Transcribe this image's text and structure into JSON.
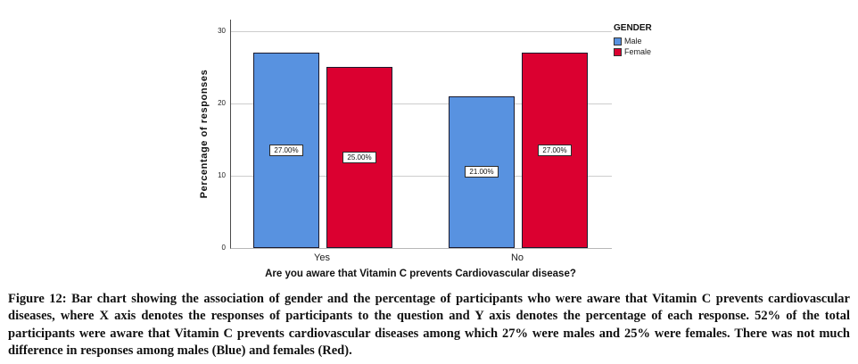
{
  "figure": {
    "caption": "Figure 12: Bar chart showing the association of gender and the percentage of participants who were aware that Vitamin C prevents cardiovascular diseases, where X axis denotes the responses of participants to the question and Y axis denotes the percentage of each response. 52% of the total participants were aware that Vitamin C prevents cardiovascular diseases among which 27% were males and 25% were females. There was not much difference in responses among males (Blue) and females (Red)."
  },
  "chart_data": {
    "type": "bar",
    "categories": [
      "Yes",
      "No"
    ],
    "series": [
      {
        "name": "Male",
        "color": "#5892E0",
        "values": [
          27,
          21
        ],
        "labels": [
          "27.00%",
          "21.00%"
        ]
      },
      {
        "name": "Female",
        "color": "#DB0030",
        "values": [
          25,
          27
        ],
        "labels": [
          "25.00%",
          "27.00%"
        ]
      }
    ],
    "title": "",
    "xlabel": "Are you aware that Vitamin C prevents Cardiovascular disease?",
    "ylabel": "Percentage of responses",
    "ylim": [
      0,
      30
    ],
    "yticks": [
      0,
      10,
      20,
      30
    ],
    "legend_title": "GENDER",
    "legend_position": "top-right",
    "grid": true
  }
}
